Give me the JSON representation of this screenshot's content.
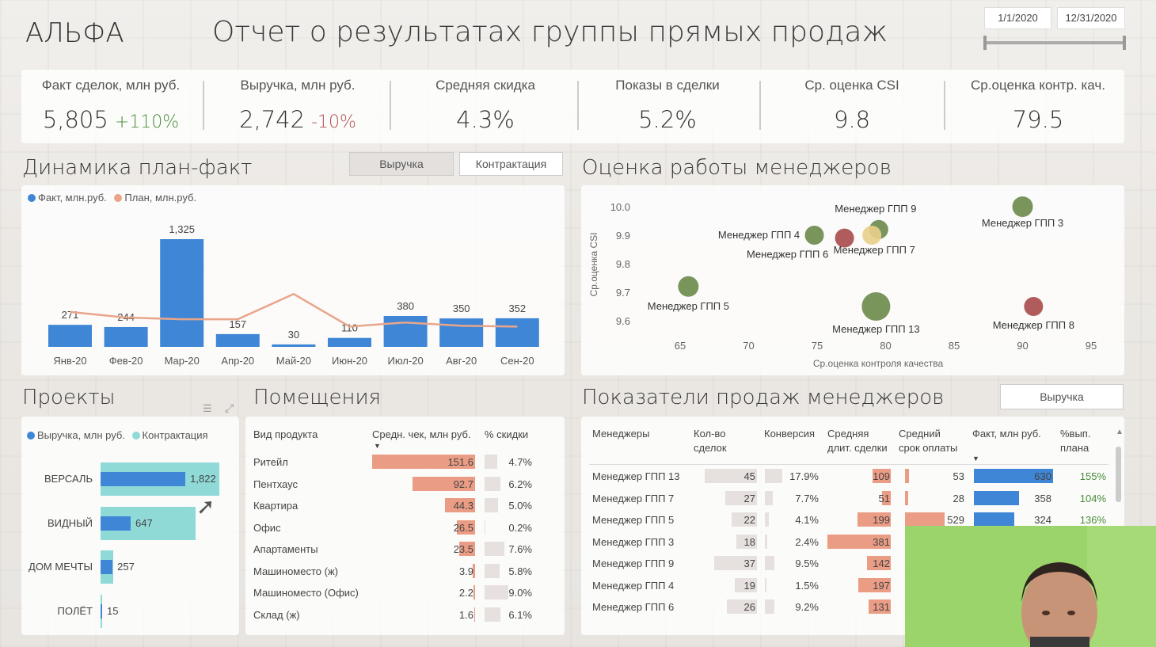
{
  "header": {
    "brand": "АЛЬФА",
    "title": "Отчет о результатах группы прямых продаж",
    "date_from": "1/1/2020",
    "date_to": "12/31/2020"
  },
  "kpis": [
    {
      "label": "Факт сделок, млн руб.",
      "value": "5,805",
      "delta": "+110%",
      "delta_color": "#4a8c3a"
    },
    {
      "label": "Выручка, млн руб.",
      "value": "2,742",
      "delta": "-10%",
      "delta_color": "#b05050"
    },
    {
      "label": "Средняя скидка",
      "value": "4.3%"
    },
    {
      "label": "Показы в сделки",
      "value": "5.2%"
    },
    {
      "label": "Ср. оценка CSI",
      "value": "9.8"
    },
    {
      "label": "Ср.оценка контр. кач.",
      "value": "79.5"
    }
  ],
  "dynamics": {
    "title": "Динамика план-факт",
    "btn_revenue": "Выручка",
    "btn_contract": "Контрактация",
    "legend_fact": "Факт, млн.руб.",
    "legend_plan": "План, млн.руб."
  },
  "managers_eval": {
    "title": "Оценка работы менеджеров"
  },
  "projects": {
    "title": "Проекты",
    "legend_revenue": "Выручка, млн руб.",
    "legend_contract": "Контрактация",
    "items": [
      {
        "name": "ВЕРСАЛЬ",
        "revenue": 1822,
        "contract": 2550,
        "label": "1,822"
      },
      {
        "name": "ВИДНЫЙ",
        "revenue": 647,
        "contract": 2040,
        "label": "647"
      },
      {
        "name": "ДОМ МЕЧТЫ",
        "revenue": 257,
        "contract": 270,
        "label": "257"
      },
      {
        "name": "ПОЛЁТ",
        "revenue": 15,
        "contract": 20,
        "label": "15"
      }
    ]
  },
  "premises": {
    "title": "Помещения",
    "col_type": "Вид продукта",
    "col_avg": "Средн. чек, млн руб.",
    "col_disc": "% скидки",
    "rows": [
      {
        "type": "Ритейл",
        "avg": 151.6,
        "avg_label": "151.6",
        "disc": 4.7,
        "disc_label": "4.7%"
      },
      {
        "type": "Пентхаус",
        "avg": 92.7,
        "avg_label": "92.7",
        "disc": 6.2,
        "disc_label": "6.2%"
      },
      {
        "type": "Квартира",
        "avg": 44.3,
        "avg_label": "44.3",
        "disc": 5.0,
        "disc_label": "5.0%"
      },
      {
        "type": "Офис",
        "avg": 26.5,
        "avg_label": "26.5",
        "disc": 0.2,
        "disc_label": "0.2%"
      },
      {
        "type": "Апартаменты",
        "avg": 23.5,
        "avg_label": "23.5",
        "disc": 7.6,
        "disc_label": "7.6%"
      },
      {
        "type": "Машиноместо (ж)",
        "avg": 3.9,
        "avg_label": "3.9",
        "disc": 5.8,
        "disc_label": "5.8%"
      },
      {
        "type": "Машиноместо (Офис)",
        "avg": 2.2,
        "avg_label": "2.2",
        "disc": 9.0,
        "disc_label": "9.0%"
      },
      {
        "type": "Склад (ж)",
        "avg": 1.6,
        "avg_label": "1.6",
        "disc": 6.1,
        "disc_label": "6.1%"
      }
    ]
  },
  "sales": {
    "title": "Показатели продаж менеджеров",
    "btn": "Выручка",
    "cols": [
      "Менеджеры",
      "Кол-во сделок",
      "Конверсия",
      "Средняя длит. сделки",
      "Средний срок оплаты",
      "Факт, млн руб.",
      "%вып. плана"
    ],
    "col_lines": [
      [
        "Менеджеры"
      ],
      [
        "Кол-во",
        "сделок"
      ],
      [
        "Конверсия"
      ],
      [
        "Средняя",
        "длит. сделки"
      ],
      [
        "Средний",
        "срок оплаты"
      ],
      [
        "Факт, млн руб."
      ],
      [
        "%вып.",
        "плана"
      ]
    ],
    "rows": [
      {
        "name": "Менеджер ГПП 13",
        "deals": 45,
        "conv": 17.9,
        "conv_label": "17.9%",
        "dur": 109,
        "pay": 53,
        "fact": 630,
        "plan": "155%"
      },
      {
        "name": "Менеджер ГПП 7",
        "deals": 27,
        "conv": 7.7,
        "conv_label": "7.7%",
        "dur": 51,
        "pay": 28,
        "fact": 358,
        "plan": "104%"
      },
      {
        "name": "Менеджер ГПП 5",
        "deals": 22,
        "conv": 4.1,
        "conv_label": "4.1%",
        "dur": 199,
        "pay": 529,
        "fact": 324,
        "plan": "136%"
      },
      {
        "name": "Менеджер ГПП 3",
        "deals": 18,
        "conv": 2.4,
        "conv_label": "2.4%",
        "dur": 381,
        "pay": null,
        "fact": null,
        "plan": ""
      },
      {
        "name": "Менеджер ГПП 9",
        "deals": 37,
        "conv": 9.5,
        "conv_label": "9.5%",
        "dur": 142,
        "pay": null,
        "fact": null,
        "plan": ""
      },
      {
        "name": "Менеджер ГПП 4",
        "deals": 19,
        "conv": 1.5,
        "conv_label": "1.5%",
        "dur": 197,
        "pay": null,
        "fact": null,
        "plan": ""
      },
      {
        "name": "Менеджер ГПП 6",
        "deals": 26,
        "conv": 9.2,
        "conv_label": "9.2%",
        "dur": 131,
        "pay": null,
        "fact": null,
        "plan": ""
      }
    ]
  },
  "colors": {
    "fact_blue": "#3f86d6",
    "plan_salmon": "#e8a58a",
    "contract_teal": "#8fdad6",
    "bar_salmon": "#eb9c85",
    "bar_gray": "#e6e1df"
  },
  "chart_data": [
    {
      "type": "bar",
      "title": "Динамика план-факт",
      "categories": [
        "Янв-20",
        "Фев-20",
        "Мар-20",
        "Апр-20",
        "Май-20",
        "Июн-20",
        "Июл-20",
        "Авг-20",
        "Сен-20"
      ],
      "series": [
        {
          "name": "Факт, млн.руб.",
          "values": [
            271,
            244,
            1325,
            157,
            30,
            110,
            380,
            350,
            352
          ]
        },
        {
          "name": "План, млн.руб.",
          "type": "line",
          "values": [
            430,
            360,
            340,
            340,
            650,
            250,
            300,
            260,
            250
          ]
        }
      ],
      "value_labels": [
        "271",
        "244",
        "1,325",
        "157",
        "30",
        "110",
        "380",
        "350",
        "352"
      ],
      "ylim": [
        0,
        1400
      ]
    },
    {
      "type": "scatter",
      "title": "Оценка работы менеджеров",
      "xlabel": "Ср.оценка контроля качества",
      "ylabel": "Ср.оценка CSI",
      "xlim": [
        62,
        97
      ],
      "ylim": [
        9.55,
        10.02
      ],
      "x_ticks": [
        "65",
        "70",
        "75",
        "80",
        "85",
        "90",
        "95"
      ],
      "y_ticks": [
        "10.0",
        "9.9",
        "9.8",
        "9.7",
        "9.6"
      ],
      "points": [
        {
          "name": "Менеджер ГПП 3",
          "x": 90,
          "y": 10.0,
          "size": 13,
          "color": "#6b8a4a"
        },
        {
          "name": "Менеджер ГПП 9",
          "x": 79.5,
          "y": 9.92,
          "size": 12,
          "color": "#6b8a4a"
        },
        {
          "name": "Менеджер ГПП 4",
          "x": 74.8,
          "y": 9.9,
          "size": 12,
          "color": "#6b8a4a"
        },
        {
          "name": "Менеджер ГПП 6",
          "x": 77,
          "y": 9.89,
          "size": 12,
          "color": "#a84a4a"
        },
        {
          "name": "Менеджер ГПП 7",
          "x": 79,
          "y": 9.9,
          "size": 12,
          "color": "#e8cf8a"
        },
        {
          "name": "Менеджер ГПП 5",
          "x": 65.6,
          "y": 9.72,
          "size": 13,
          "color": "#6b8a4a"
        },
        {
          "name": "Менеджер ГПП 13",
          "x": 79.3,
          "y": 9.65,
          "size": 18,
          "color": "#6b8a4a"
        },
        {
          "name": "Менеджер ГПП 8",
          "x": 90.8,
          "y": 9.65,
          "size": 12,
          "color": "#a84a4a"
        }
      ]
    }
  ]
}
